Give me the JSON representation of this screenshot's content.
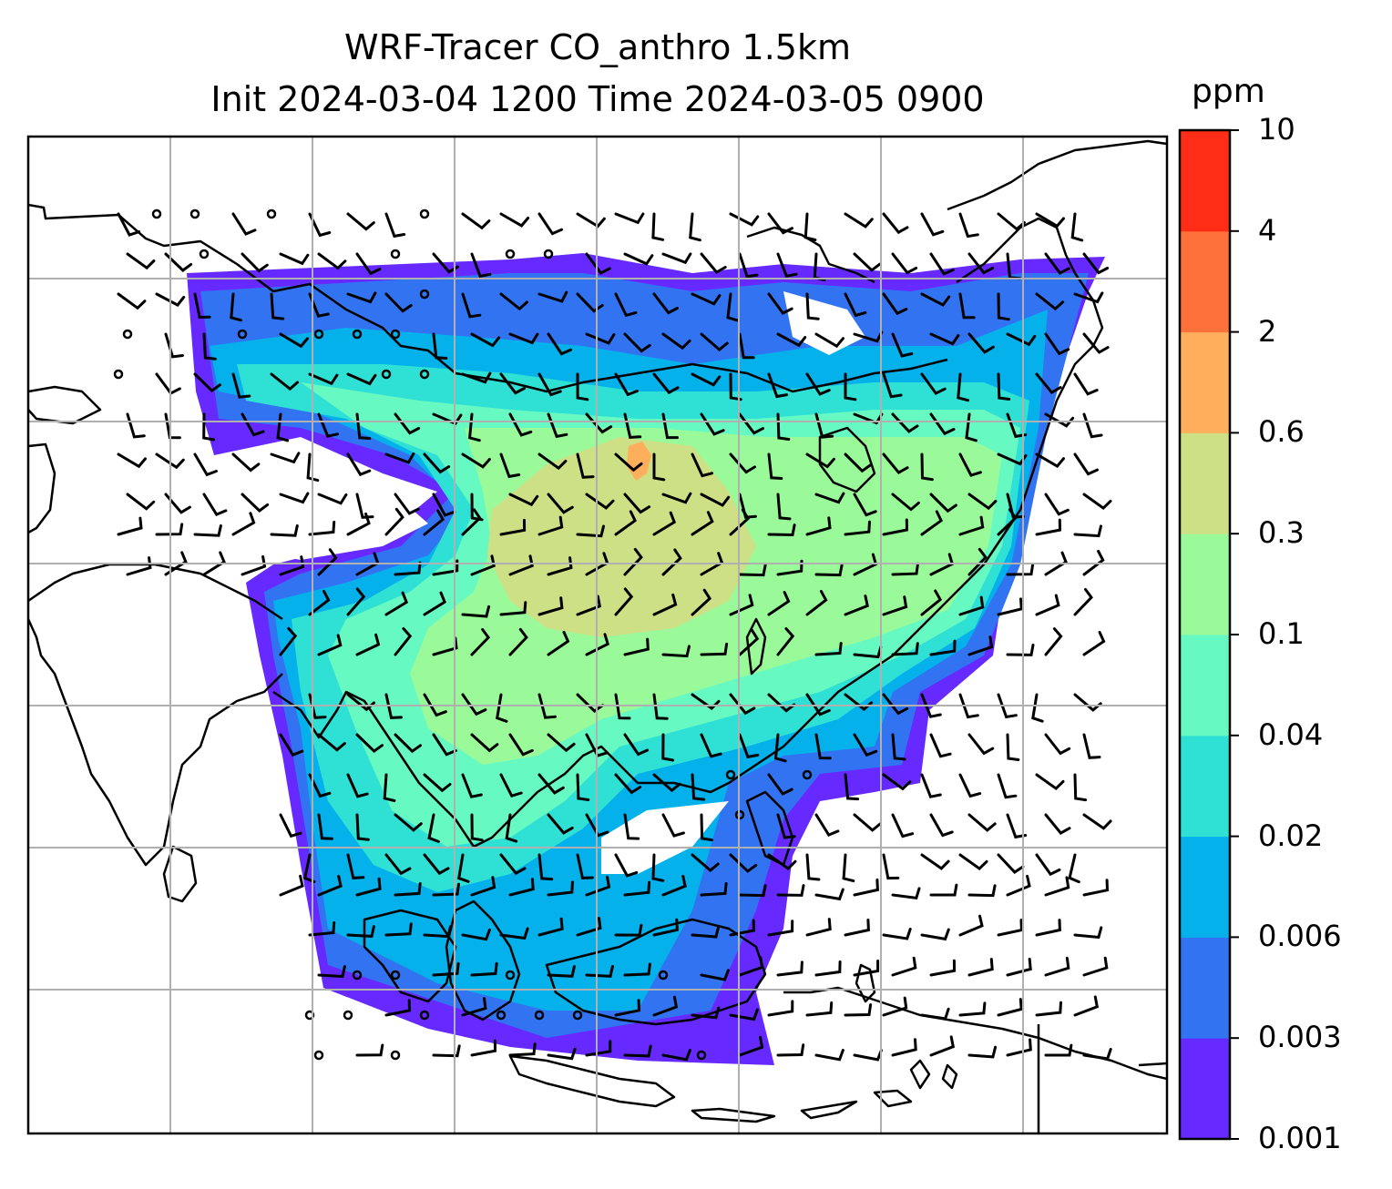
{
  "chart_data": {
    "type": "heatmap",
    "title": "WRF-Tracer CO_anthro 1.5km",
    "subtitle": "Init 2024-03-04 1200 Time 2024-03-05 0900",
    "colorbar": {
      "unit": "ppm",
      "levels": [
        "0.001",
        "0.003",
        "0.006",
        "0.02",
        "0.04",
        "0.1",
        "0.3",
        "0.6",
        "2",
        "4",
        "10"
      ],
      "colors": [
        "#6629ff",
        "#3273f2",
        "#05b1eb",
        "#2fe0d4",
        "#66f9c2",
        "#9afa9a",
        "#cde085",
        "#ffae5b",
        "#ff713a",
        "#ff2c16"
      ]
    },
    "grid": true,
    "overlays": [
      "coastlines",
      "wind barbs"
    ],
    "map_region": "South and Southeast Asia, China, Maritime Continent"
  }
}
